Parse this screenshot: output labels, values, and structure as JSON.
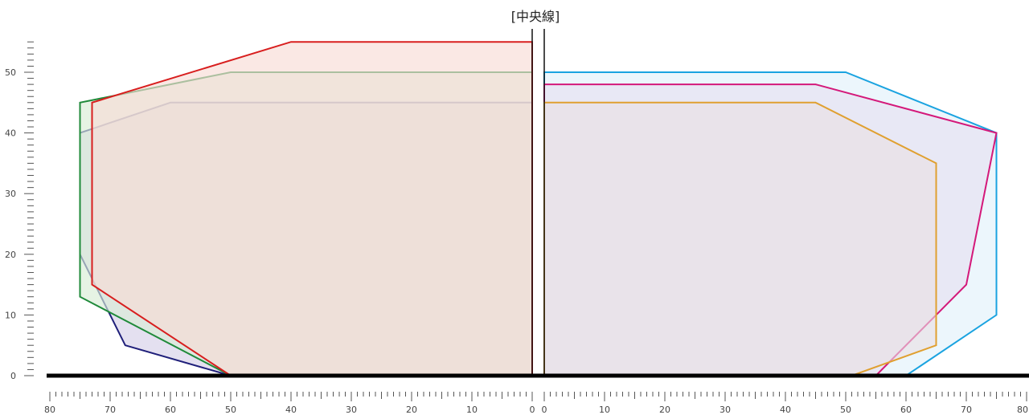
{
  "chart_data": {
    "type": "area",
    "title": "[中央線]",
    "xlabel": "",
    "ylabel": "",
    "x_ticks_left": [
      "80",
      "70",
      "60",
      "50",
      "40",
      "30",
      "20",
      "10",
      "0"
    ],
    "x_ticks_right": [
      "0",
      "10",
      "20",
      "30",
      "40",
      "50",
      "60",
      "70",
      "80"
    ],
    "y_ticks": [
      "0",
      "10",
      "20",
      "30",
      "40",
      "50"
    ],
    "xlim": [
      0,
      80
    ],
    "ylim": [
      0,
      55
    ],
    "grid": false,
    "left_side": [
      {
        "color": "#1f1f7a",
        "fill": "#d5d0e8",
        "points": [
          [
            0,
            0
          ],
          [
            50,
            0
          ],
          [
            67.5,
            5
          ],
          [
            75,
            20
          ],
          [
            75,
            40
          ],
          [
            60,
            45
          ],
          [
            0,
            45
          ]
        ]
      },
      {
        "color": "#1f8a3a",
        "fill": "#d8ecd6",
        "points": [
          [
            0,
            0
          ],
          [
            50,
            0
          ],
          [
            75,
            13
          ],
          [
            75,
            45
          ],
          [
            50,
            50
          ],
          [
            0,
            50
          ]
        ]
      },
      {
        "color": "#d81e1e",
        "fill": "#f8dcd6",
        "points": [
          [
            0,
            0
          ],
          [
            50,
            0
          ],
          [
            73,
            15
          ],
          [
            73,
            45
          ],
          [
            40,
            55
          ],
          [
            0,
            55
          ]
        ]
      }
    ],
    "right_side": [
      {
        "color": "#1aa3e0",
        "fill": "#dff0fa",
        "points": [
          [
            0,
            0
          ],
          [
            60,
            0
          ],
          [
            75,
            10
          ],
          [
            75,
            40
          ],
          [
            50,
            50
          ],
          [
            0,
            50
          ]
        ]
      },
      {
        "color": "#d4197a",
        "fill": "#e6dff0",
        "points": [
          [
            0,
            0
          ],
          [
            55,
            0
          ],
          [
            70,
            15
          ],
          [
            75,
            40
          ],
          [
            45,
            48
          ],
          [
            0,
            48
          ]
        ]
      },
      {
        "color": "#e0a030",
        "fill": "#eae0e3",
        "points": [
          [
            0,
            0
          ],
          [
            51,
            0
          ],
          [
            65,
            5
          ],
          [
            65,
            35
          ],
          [
            45,
            45
          ],
          [
            0,
            45
          ]
        ]
      }
    ]
  }
}
